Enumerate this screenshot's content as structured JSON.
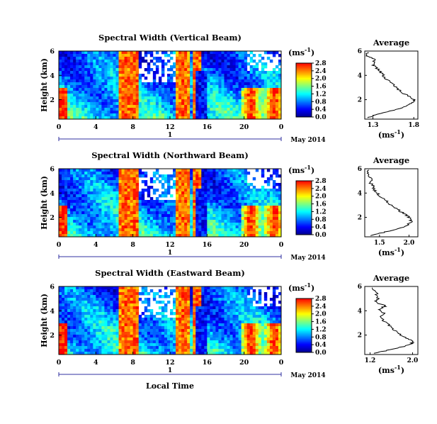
{
  "figure": {
    "xlabel": "Local Time",
    "date_label": "May 2014",
    "day_label": "1",
    "colorbar_unit": "(ms",
    "colorbar_unit_sup": "-1",
    "colorbar_unit_end": ")",
    "avg_title": "Average",
    "avg_unit": "(ms",
    "avg_unit_sup": "-1",
    "avg_unit_end": ")",
    "colormap": [
      "#00008f",
      "#0000ff",
      "#007fff",
      "#00ffff",
      "#7fff7f",
      "#ffff00",
      "#ff7f00",
      "#ff0000"
    ]
  },
  "chart_data": [
    {
      "type": "heatmap",
      "title": "Spectral Width (Vertical Beam)",
      "ylabel": "Height (km)",
      "x_ticks": [
        "0",
        "4",
        "8",
        "12",
        "16",
        "20",
        "0"
      ],
      "xlim": [
        0,
        24
      ],
      "y_ticks": [
        "2",
        "4",
        "6"
      ],
      "ylim": [
        0.4,
        6.0
      ],
      "colorbar_ticks": [
        "0.0",
        "0.4",
        "0.8",
        "1.2",
        "1.6",
        "2.0",
        "2.4",
        "2.8"
      ],
      "colorbar_range": [
        0.0,
        2.8
      ],
      "average": {
        "type": "line",
        "title": "Average",
        "x_ticks": [
          "1.3",
          "1.8"
        ],
        "xlim": [
          1.2,
          1.85
        ],
        "ylim": [
          0.4,
          6.0
        ],
        "y_ticks": [
          "2",
          "4",
          "6"
        ],
        "profile": [
          [
            1.23,
            0.5
          ],
          [
            1.35,
            0.8
          ],
          [
            1.6,
            1.2
          ],
          [
            1.75,
            1.6
          ],
          [
            1.82,
            1.9
          ],
          [
            1.77,
            2.2
          ],
          [
            1.68,
            2.5
          ],
          [
            1.6,
            2.9
          ],
          [
            1.55,
            3.3
          ],
          [
            1.45,
            3.7
          ],
          [
            1.42,
            4.1
          ],
          [
            1.36,
            4.5
          ],
          [
            1.3,
            4.9
          ],
          [
            1.32,
            5.3
          ],
          [
            1.22,
            5.6
          ],
          [
            1.24,
            5.9
          ]
        ]
      }
    },
    {
      "type": "heatmap",
      "title": "Spectral Width (Northward Beam)",
      "ylabel": "Height (km)",
      "x_ticks": [
        "0",
        "4",
        "8",
        "12",
        "16",
        "20",
        "0"
      ],
      "xlim": [
        0,
        24
      ],
      "y_ticks": [
        "2",
        "4",
        "6"
      ],
      "ylim": [
        0.4,
        6.0
      ],
      "colorbar_ticks": [
        "0.0",
        "0.4",
        "0.8",
        "1.2",
        "1.6",
        "2.0",
        "2.4",
        "2.8"
      ],
      "colorbar_range": [
        0.0,
        2.8
      ],
      "average": {
        "type": "line",
        "title": "Average",
        "x_ticks": [
          "1.5",
          "2.0"
        ],
        "xlim": [
          1.25,
          2.15
        ],
        "ylim": [
          0.4,
          6.0
        ],
        "y_ticks": [
          "2",
          "4",
          "6"
        ],
        "profile": [
          [
            1.35,
            0.5
          ],
          [
            1.6,
            0.8
          ],
          [
            1.9,
            1.2
          ],
          [
            2.05,
            1.6
          ],
          [
            2.02,
            1.9
          ],
          [
            1.95,
            2.2
          ],
          [
            1.82,
            2.6
          ],
          [
            1.7,
            3.0
          ],
          [
            1.6,
            3.4
          ],
          [
            1.5,
            3.8
          ],
          [
            1.42,
            4.2
          ],
          [
            1.4,
            4.5
          ],
          [
            1.35,
            4.8
          ],
          [
            1.38,
            5.1
          ],
          [
            1.3,
            5.5
          ],
          [
            1.32,
            5.9
          ]
        ]
      }
    },
    {
      "type": "heatmap",
      "title": "Spectral Width (Eastward Beam)",
      "ylabel": "Height (km)",
      "x_ticks": [
        "0",
        "4",
        "8",
        "12",
        "16",
        "20",
        "0"
      ],
      "xlim": [
        0,
        24
      ],
      "y_ticks": [
        "2",
        "4",
        "6"
      ],
      "ylim": [
        0.4,
        6.0
      ],
      "colorbar_ticks": [
        "0.0",
        "0.4",
        "0.8",
        "1.2",
        "1.6",
        "2.0",
        "2.4",
        "2.8"
      ],
      "colorbar_range": [
        0.0,
        2.8
      ],
      "average": {
        "type": "line",
        "title": "Average",
        "x_ticks": [
          "1.2",
          "2.0"
        ],
        "xlim": [
          1.1,
          2.1
        ],
        "ylim": [
          0.4,
          6.0
        ],
        "y_ticks": [
          "2",
          "4",
          "6"
        ],
        "profile": [
          [
            1.25,
            0.5
          ],
          [
            1.6,
            0.8
          ],
          [
            1.95,
            1.2
          ],
          [
            2.02,
            1.5
          ],
          [
            1.85,
            1.8
          ],
          [
            1.7,
            2.2
          ],
          [
            1.62,
            2.6
          ],
          [
            1.5,
            3.0
          ],
          [
            1.4,
            3.4
          ],
          [
            1.45,
            3.8
          ],
          [
            1.35,
            4.1
          ],
          [
            1.5,
            4.4
          ],
          [
            1.3,
            4.7
          ],
          [
            1.35,
            5.0
          ],
          [
            1.32,
            5.4
          ],
          [
            1.24,
            5.9
          ]
        ]
      }
    }
  ]
}
